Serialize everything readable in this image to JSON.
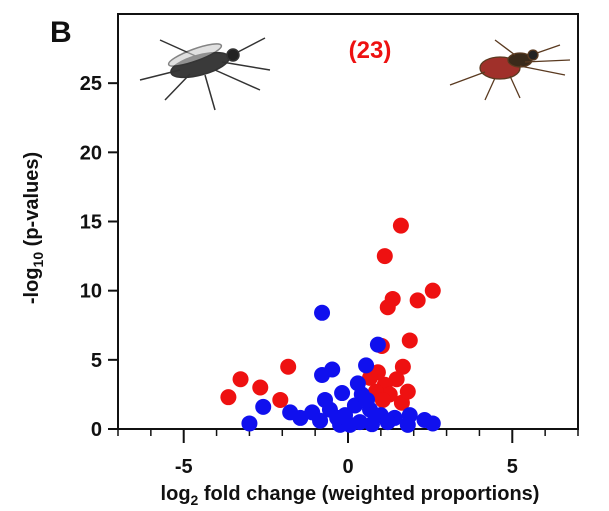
{
  "chart_data": {
    "type": "scatter",
    "panel_label": "B",
    "annotation": "(23)",
    "xlabel": {
      "prefix": "log",
      "sub": "2",
      "suffix": " fold change (weighted proportions)"
    },
    "ylabel": {
      "prefix": "-log",
      "sub": "10",
      "suffix": " (p-values)"
    },
    "xlim": [
      -7,
      7
    ],
    "xticks": [
      -5,
      0,
      5
    ],
    "xminorticks": [
      -7,
      -6,
      -5,
      -4,
      -3,
      -2,
      -1,
      0,
      1,
      2,
      3,
      4,
      5,
      6,
      7
    ],
    "ylim": [
      0,
      30
    ],
    "yticks": [
      0,
      5,
      10,
      15,
      20,
      25
    ],
    "series": [
      {
        "color": "#ee1111",
        "x": [
          1.61,
          1.12,
          2.58,
          1.36,
          1.21,
          2.12,
          1.88,
          1.03,
          -3.27,
          -1.82,
          -3.64,
          -2.67,
          -2.06,
          1.67,
          1.48,
          1.12,
          1.64,
          1.27,
          0.85,
          0.91,
          1.06,
          0.67,
          1.82
        ],
        "values": [
          14.7,
          12.5,
          10.0,
          9.4,
          8.8,
          9.3,
          6.4,
          6.0,
          3.6,
          4.5,
          2.3,
          3.0,
          2.1,
          4.5,
          3.6,
          3.2,
          1.9,
          2.5,
          2.7,
          4.1,
          2.1,
          3.7,
          2.7
        ]
      },
      {
        "color": "#1010ee",
        "x": [
          -0.79,
          -0.79,
          -0.48,
          0.55,
          0.91,
          -0.18,
          -3.0,
          -2.58,
          -1.76,
          -1.45,
          -1.09,
          -0.7,
          -0.55,
          -0.09,
          0.21,
          0.42,
          0.67,
          1.0,
          1.42,
          1.88,
          2.33,
          2.58,
          -0.24,
          0.06,
          0.36,
          0.73,
          -0.85,
          1.21,
          1.82,
          -0.33,
          0.58,
          0.3
        ],
        "values": [
          8.4,
          3.9,
          4.3,
          4.6,
          6.1,
          2.6,
          0.4,
          1.6,
          1.2,
          0.8,
          1.2,
          2.1,
          1.4,
          1.0,
          1.7,
          2.5,
          1.4,
          1.0,
          0.8,
          1.0,
          0.65,
          0.4,
          0.3,
          0.3,
          0.5,
          0.35,
          0.6,
          0.5,
          0.3,
          0.8,
          2.1,
          3.3
        ]
      }
    ]
  }
}
